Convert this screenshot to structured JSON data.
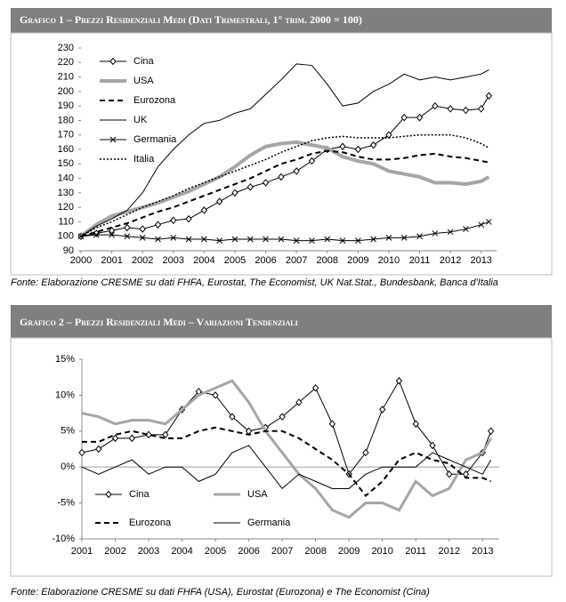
{
  "chart_data": [
    {
      "type": "line",
      "title": "Grafico 1 – Prezzi Residenziali Medi  (Dati Trimestrali, 1° trim. 2000 = 100)",
      "source": "Fonte: Elaborazione CRESME su dati FHFA, Eurostat, The Economist, UK Nat.Stat., Bundesbank, Banca d'Italia",
      "x": [
        2000,
        2000.5,
        2001,
        2001.5,
        2002,
        2002.5,
        2003,
        2003.5,
        2004,
        2004.5,
        2005,
        2005.5,
        2006,
        2006.5,
        2007,
        2007.5,
        2008,
        2008.5,
        2009,
        2009.5,
        2010,
        2010.5,
        2011,
        2011.5,
        2012,
        2012.5,
        2013,
        2013.25
      ],
      "xlim": [
        2000,
        2013.5
      ],
      "xticks": [
        2000,
        2001,
        2002,
        2003,
        2004,
        2005,
        2006,
        2007,
        2008,
        2009,
        2010,
        2011,
        2012,
        2013
      ],
      "ylim": [
        90,
        230
      ],
      "yticks": [
        90,
        100,
        110,
        120,
        130,
        140,
        150,
        160,
        170,
        180,
        190,
        200,
        210,
        220,
        230
      ],
      "series": [
        {
          "name": "Cina",
          "color": "#000000",
          "width": 1,
          "marker": "diamond",
          "values": [
            100,
            102,
            104,
            106,
            105,
            108,
            111,
            112,
            118,
            124,
            130,
            134,
            137,
            141,
            145,
            152,
            160,
            162,
            160,
            163,
            170,
            182,
            182,
            190,
            188,
            187,
            188,
            197
          ]
        },
        {
          "name": "USA",
          "color": "#a6a6a6",
          "width": 4,
          "values": [
            100,
            108,
            114,
            117,
            120,
            123,
            127,
            131,
            136,
            141,
            148,
            156,
            162,
            164,
            165,
            163,
            161,
            155,
            152,
            150,
            145,
            143,
            141,
            137,
            137,
            136,
            138,
            141
          ]
        },
        {
          "name": "Eurozona",
          "color": "#000000",
          "width": 2,
          "dash": "dashed",
          "values": [
            100,
            103,
            106,
            109,
            113,
            117,
            120,
            124,
            128,
            132,
            136,
            140,
            145,
            150,
            153,
            157,
            159,
            158,
            155,
            153,
            153,
            154,
            156,
            157,
            155,
            154,
            152,
            151
          ]
        },
        {
          "name": "UK",
          "color": "#000000",
          "width": 1,
          "values": [
            100,
            107,
            112,
            118,
            130,
            148,
            160,
            170,
            178,
            180,
            185,
            188,
            198,
            208,
            219,
            218,
            205,
            190,
            192,
            200,
            205,
            212,
            208,
            210,
            208,
            210,
            212,
            215
          ]
        },
        {
          "name": "Germania",
          "color": "#000000",
          "width": 1,
          "marker": "x",
          "values": [
            100,
            101,
            101,
            100,
            99,
            98,
            99,
            98,
            98,
            97,
            98,
            98,
            98,
            98,
            97,
            97,
            98,
            97,
            97,
            98,
            99,
            99,
            100,
            102,
            103,
            105,
            108,
            110
          ]
        },
        {
          "name": "Italia",
          "color": "#000000",
          "width": 1.5,
          "dash": "dotted",
          "values": [
            100,
            106,
            110,
            115,
            120,
            124,
            128,
            133,
            137,
            141,
            145,
            149,
            153,
            158,
            162,
            166,
            168,
            169,
            168,
            168,
            168,
            169,
            170,
            170,
            170,
            168,
            164,
            161
          ]
        }
      ]
    },
    {
      "type": "line",
      "title": "Grafico 2 – Prezzi Residenziali Medi – Variazioni Tendenziali",
      "source": "Fonte: Elaborazione CRESME su dati FHFA (USA), Eurostat (Eurozona) e The Economist (Cina)",
      "x": [
        2001,
        2001.5,
        2002,
        2002.5,
        2003,
        2003.5,
        2004,
        2004.5,
        2005,
        2005.5,
        2006,
        2006.5,
        2007,
        2007.5,
        2008,
        2008.5,
        2009,
        2009.5,
        2010,
        2010.5,
        2011,
        2011.5,
        2012,
        2012.5,
        2013,
        2013.25
      ],
      "xlim": [
        2001,
        2013.5
      ],
      "xticks": [
        2001,
        2002,
        2003,
        2004,
        2005,
        2006,
        2007,
        2008,
        2009,
        2010,
        2011,
        2012,
        2013
      ],
      "ylim": [
        -10,
        15
      ],
      "yticks": [
        {
          "value": -10,
          "label": "-10%"
        },
        {
          "value": -5,
          "label": "-5%"
        },
        {
          "value": 0,
          "label": "0%"
        },
        {
          "value": 5,
          "label": "5%"
        },
        {
          "value": 10,
          "label": "10%"
        },
        {
          "value": 15,
          "label": "15%"
        }
      ],
      "series": [
        {
          "name": "Cina",
          "color": "#000000",
          "width": 1,
          "marker": "diamond",
          "values": [
            2,
            2.5,
            4,
            4,
            4.5,
            4.5,
            8,
            10.5,
            10,
            7,
            5,
            5.5,
            7,
            9,
            11,
            6,
            -1,
            2,
            8,
            12,
            6,
            3,
            -1,
            -1,
            2,
            5
          ]
        },
        {
          "name": "USA",
          "color": "#a6a6a6",
          "width": 3,
          "values": [
            7.5,
            7,
            6,
            6.5,
            6.5,
            6,
            8,
            10,
            11,
            12,
            9,
            5,
            2,
            -1,
            -3,
            -6,
            -7,
            -5,
            -5,
            -6,
            -2,
            -4,
            -3,
            1,
            2,
            4
          ]
        },
        {
          "name": "Eurozona",
          "color": "#000000",
          "width": 2,
          "dash": "dashed",
          "values": [
            3.5,
            3.5,
            4.5,
            5,
            4.5,
            4,
            4,
            5,
            5.5,
            5,
            4.5,
            5,
            5,
            4,
            2.5,
            1,
            -1,
            -4,
            -2,
            1,
            2,
            1,
            0.5,
            -1.5,
            -1.5,
            -2
          ]
        },
        {
          "name": "Germania",
          "color": "#000000",
          "width": 1,
          "values": [
            0,
            -1,
            0,
            1,
            -1,
            0,
            0,
            -2,
            -1,
            2,
            3,
            0,
            -3,
            -1,
            -2,
            -3,
            -3,
            -1,
            0,
            0,
            0,
            2,
            1,
            0,
            -1,
            1
          ]
        }
      ]
    }
  ]
}
